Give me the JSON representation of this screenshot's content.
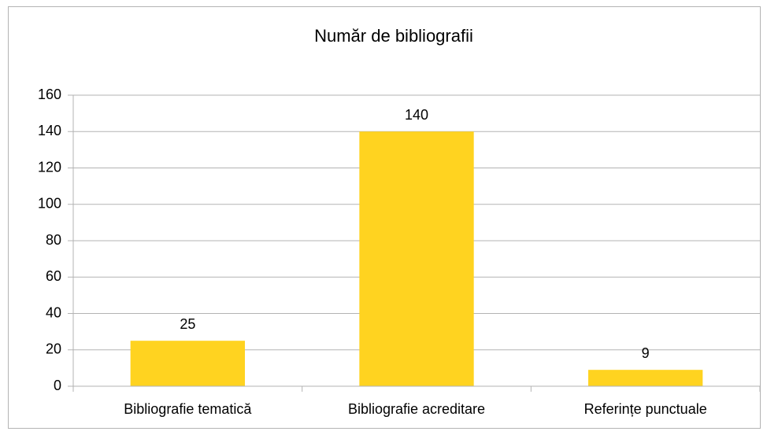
{
  "chart_data": {
    "type": "bar",
    "title": "Număr de bibliografii",
    "categories": [
      "Bibliografie tematică",
      "Bibliografie acreditare",
      "Referințe punctuale"
    ],
    "values": [
      25,
      140,
      9
    ],
    "color": "#ffd320",
    "ylim": [
      0,
      160
    ],
    "yticks": [
      0,
      20,
      40,
      60,
      80,
      100,
      120,
      140,
      160
    ],
    "grid": true
  }
}
